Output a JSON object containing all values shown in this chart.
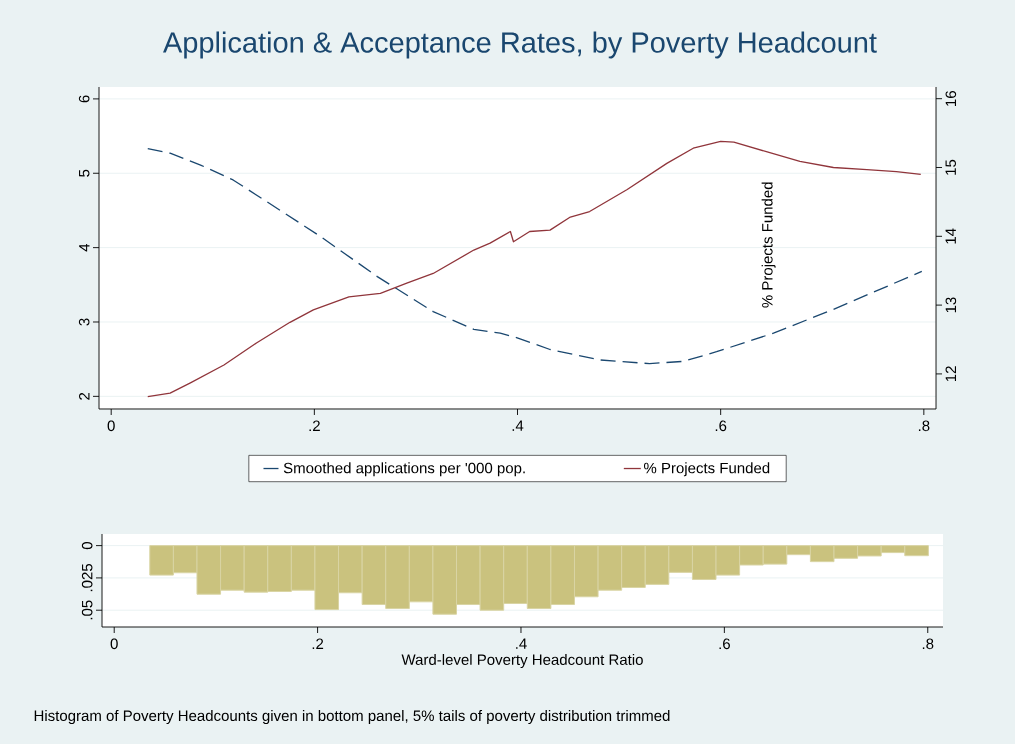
{
  "chart_data": [
    {
      "type": "line",
      "title": "Application & Acceptance Rates, by Poverty Headcount",
      "series": [
        {
          "name": "Smoothed applications per '000 pop.",
          "color": "#1a476f",
          "line_style": "dashed",
          "axis": "y",
          "x": [
            0.036,
            0.058,
            0.088,
            0.12,
            0.153,
            0.206,
            0.262,
            0.317,
            0.357,
            0.373,
            0.383,
            0.399,
            0.432,
            0.481,
            0.53,
            0.563,
            0.596,
            0.652,
            0.711,
            0.798
          ],
          "values": [
            5.33,
            5.27,
            5.11,
            4.91,
            4.62,
            4.15,
            3.61,
            3.14,
            2.9,
            2.87,
            2.85,
            2.79,
            2.63,
            2.49,
            2.44,
            2.47,
            2.6,
            2.85,
            3.17,
            3.68
          ]
        },
        {
          "name": "% Projects Funded",
          "color": "#90353b",
          "line_style": "solid",
          "axis": "y2",
          "x": [
            0.036,
            0.058,
            0.078,
            0.111,
            0.143,
            0.176,
            0.199,
            0.234,
            0.265,
            0.291,
            0.317,
            0.357,
            0.373,
            0.393,
            0.396,
            0.412,
            0.432,
            0.452,
            0.471,
            0.508,
            0.547,
            0.573,
            0.6,
            0.613,
            0.645,
            0.678,
            0.711,
            0.744,
            0.773,
            0.797
          ],
          "values": [
            11.67,
            11.72,
            11.87,
            12.13,
            12.45,
            12.75,
            12.93,
            13.12,
            13.17,
            13.32,
            13.46,
            13.8,
            13.9,
            14.07,
            13.92,
            14.07,
            14.09,
            14.28,
            14.36,
            14.68,
            15.06,
            15.28,
            15.38,
            15.37,
            15.23,
            15.09,
            15.0,
            14.97,
            14.94,
            14.9
          ]
        }
      ],
      "y2label": "% Projects Funded",
      "xlim": [
        -0.012,
        0.812
      ],
      "xticks": [
        0,
        {
          "value": 0.2,
          "label": ".2"
        },
        {
          "value": 0.4,
          "label": ".4"
        },
        {
          "value": 0.6,
          "label": ".6"
        },
        {
          "value": 0.8,
          "label": ".8"
        }
      ],
      "ylim": [
        1.83,
        6.16
      ],
      "yticks": [
        2,
        3,
        4,
        5,
        6
      ],
      "y2lim": [
        11.49,
        16.17
      ],
      "y2ticks": [
        12,
        13,
        14,
        15,
        16
      ],
      "grid": "y",
      "legend": "bottom",
      "marker": "none"
    },
    {
      "type": "histogram",
      "color": "#cac27e",
      "bins": [
        0.035,
        0.0582,
        0.0814,
        0.1046,
        0.1278,
        0.151,
        0.1742,
        0.1974,
        0.2206,
        0.2438,
        0.267,
        0.2902,
        0.3134,
        0.3366,
        0.3598,
        0.383,
        0.4062,
        0.4294,
        0.4526,
        0.4758,
        0.499,
        0.5222,
        0.5454,
        0.5686,
        0.5918,
        0.615,
        0.6382,
        0.6614,
        0.6846,
        0.7078,
        0.731,
        0.7542,
        0.7774,
        0.8006
      ],
      "values": [
        0.0228,
        0.021,
        0.0376,
        0.0345,
        0.036,
        0.0355,
        0.0345,
        0.0495,
        0.0365,
        0.0456,
        0.0487,
        0.0435,
        0.0531,
        0.0456,
        0.05,
        0.0448,
        0.0487,
        0.0456,
        0.0396,
        0.0345,
        0.0324,
        0.03,
        0.0207,
        0.0262,
        0.0228,
        0.015,
        0.0143,
        0.007,
        0.0124,
        0.0098,
        0.008,
        0.0054,
        0.0078
      ],
      "xlabel": "Ward-level Poverty Headcount Ratio",
      "xlim": [
        -0.012,
        0.815
      ],
      "xticks": [
        0,
        {
          "value": 0.2,
          "label": ".2"
        },
        {
          "value": 0.4,
          "label": ".4"
        },
        {
          "value": 0.6,
          "label": ".6"
        },
        {
          "value": 0.8,
          "label": ".8"
        }
      ],
      "ylim": [
        0.063,
        -0.009
      ],
      "yticks": [
        0,
        {
          "value": 0.025,
          "label": ".025"
        },
        {
          "value": 0.05,
          "label": ".05"
        }
      ],
      "grid": "y",
      "annotations": [
        "Histogram of Poverty Headcounts given in bottom panel, 5% tails of poverty distribution trimmed"
      ]
    }
  ]
}
